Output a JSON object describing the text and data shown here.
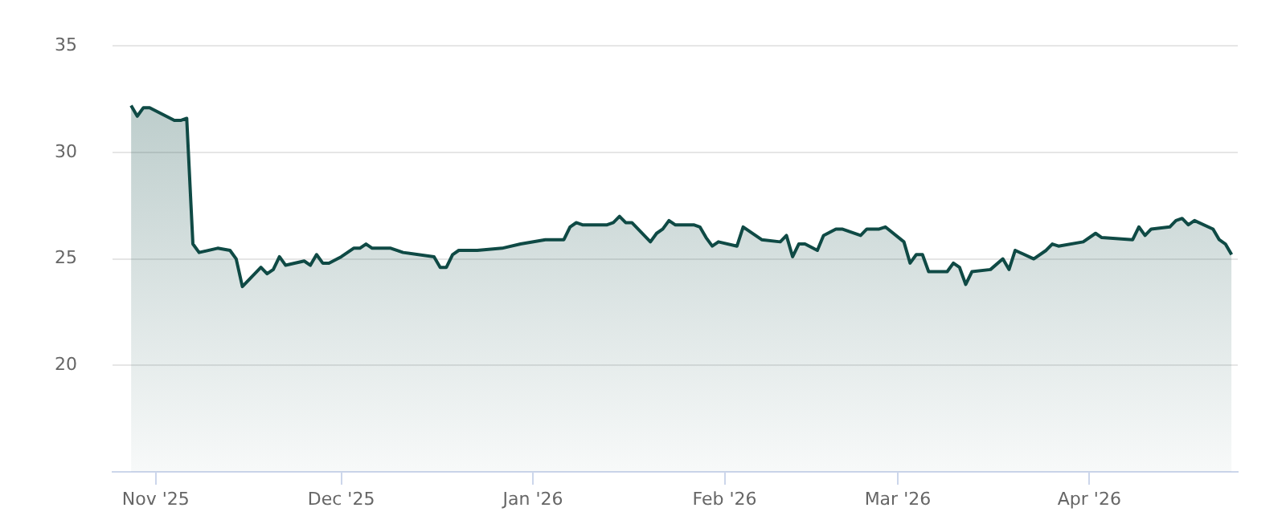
{
  "chart_data": {
    "type": "area",
    "xlim": [
      "2025-10-25",
      "2026-04-25"
    ],
    "ylim": [
      15,
      35
    ],
    "yticks": [
      20,
      25,
      30,
      35
    ],
    "xticks": [
      {
        "value": "2025-11-01",
        "label": "Nov '25"
      },
      {
        "value": "2025-12-01",
        "label": "Dec '25"
      },
      {
        "value": "2026-01-01",
        "label": "Jan '26"
      },
      {
        "value": "2026-02-01",
        "label": "Feb '26"
      },
      {
        "value": "2026-03-01",
        "label": "Mar '26"
      },
      {
        "value": "2026-04-01",
        "label": "Apr '26"
      }
    ],
    "grid": "y",
    "legend": false,
    "marker": "none",
    "line_style": "solid",
    "series": [
      {
        "color": "#0f4a45",
        "x": [
          "2025-10-28",
          "2025-10-29",
          "2025-10-30",
          "2025-10-31",
          "2025-11-04",
          "2025-11-05",
          "2025-11-06",
          "2025-11-07",
          "2025-11-08",
          "2025-11-11",
          "2025-11-13",
          "2025-11-14",
          "2025-11-15",
          "2025-11-18",
          "2025-11-19",
          "2025-11-20",
          "2025-11-21",
          "2025-11-22",
          "2025-11-25",
          "2025-11-26",
          "2025-11-27",
          "2025-11-28",
          "2025-11-29",
          "2025-12-01",
          "2025-12-03",
          "2025-12-04",
          "2025-12-05",
          "2025-12-06",
          "2025-12-09",
          "2025-12-11",
          "2025-12-16",
          "2025-12-17",
          "2025-12-18",
          "2025-12-19",
          "2025-12-20",
          "2025-12-23",
          "2025-12-27",
          "2025-12-30",
          "2026-01-03",
          "2026-01-06",
          "2026-01-07",
          "2026-01-08",
          "2026-01-09",
          "2026-01-13",
          "2026-01-14",
          "2026-01-15",
          "2026-01-16",
          "2026-01-17",
          "2026-01-20",
          "2026-01-21",
          "2026-01-22",
          "2026-01-23",
          "2026-01-24",
          "2026-01-27",
          "2026-01-28",
          "2026-01-29",
          "2026-01-30",
          "2026-01-31",
          "2026-02-03",
          "2026-02-04",
          "2026-02-07",
          "2026-02-10",
          "2026-02-11",
          "2026-02-12",
          "2026-02-13",
          "2026-02-14",
          "2026-02-16",
          "2026-02-17",
          "2026-02-19",
          "2026-02-20",
          "2026-02-23",
          "2026-02-24",
          "2026-02-26",
          "2026-02-27",
          "2026-03-02",
          "2026-03-03",
          "2026-03-04",
          "2026-03-05",
          "2026-03-06",
          "2026-03-09",
          "2026-03-10",
          "2026-03-11",
          "2026-03-12",
          "2026-03-13",
          "2026-03-16",
          "2026-03-18",
          "2026-03-19",
          "2026-03-20",
          "2026-03-23",
          "2026-03-25",
          "2026-03-26",
          "2026-03-27",
          "2026-03-31",
          "2026-04-02",
          "2026-04-03",
          "2026-04-08",
          "2026-04-09",
          "2026-04-10",
          "2026-04-11",
          "2026-04-14",
          "2026-04-15",
          "2026-04-16",
          "2026-04-17",
          "2026-04-18",
          "2026-04-21",
          "2026-04-22",
          "2026-04-23",
          "2026-04-24"
        ],
        "values": [
          32.2,
          31.7,
          32.1,
          32.1,
          31.5,
          31.5,
          31.6,
          25.7,
          25.3,
          25.5,
          25.4,
          25.0,
          23.7,
          24.6,
          24.3,
          24.5,
          25.1,
          24.7,
          24.9,
          24.7,
          25.2,
          24.8,
          24.8,
          25.1,
          25.5,
          25.5,
          25.7,
          25.5,
          25.5,
          25.3,
          25.1,
          24.6,
          24.6,
          25.2,
          25.4,
          25.4,
          25.5,
          25.7,
          25.9,
          25.9,
          26.5,
          26.7,
          26.6,
          26.6,
          26.7,
          27.0,
          26.7,
          26.7,
          25.8,
          26.2,
          26.4,
          26.8,
          26.6,
          26.6,
          26.5,
          26.0,
          25.6,
          25.8,
          25.6,
          26.5,
          25.9,
          25.8,
          26.1,
          25.1,
          25.7,
          25.7,
          25.4,
          26.1,
          26.4,
          26.4,
          26.1,
          26.4,
          26.4,
          26.5,
          25.8,
          24.8,
          25.2,
          25.2,
          24.4,
          24.4,
          24.8,
          24.6,
          23.8,
          24.4,
          24.5,
          25.0,
          24.5,
          25.4,
          25.0,
          25.4,
          25.7,
          25.6,
          25.8,
          26.2,
          26.0,
          25.9,
          26.5,
          26.1,
          26.4,
          26.5,
          26.8,
          26.9,
          26.6,
          26.8,
          26.4,
          25.9,
          25.7,
          25.2
        ]
      }
    ]
  }
}
